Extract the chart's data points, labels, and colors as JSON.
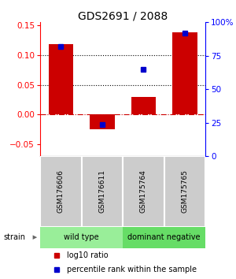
{
  "title": "GDS2691 / 2088",
  "samples": [
    "GSM176606",
    "GSM176611",
    "GSM175764",
    "GSM175765"
  ],
  "log10_ratio": [
    0.118,
    -0.025,
    0.03,
    0.138
  ],
  "percentile_rank_pct": [
    82,
    24,
    65,
    92
  ],
  "ylim_left": [
    -0.07,
    0.155
  ],
  "ylim_right": [
    0,
    100
  ],
  "yticks_left": [
    -0.05,
    0,
    0.05,
    0.1,
    0.15
  ],
  "yticks_right": [
    0,
    25,
    50,
    75,
    100
  ],
  "ytick_labels_right": [
    "0",
    "25",
    "50",
    "75",
    "100%"
  ],
  "hlines": [
    0.1,
    0.05
  ],
  "bar_color": "#cc0000",
  "dot_color": "#0000cc",
  "zero_line_color": "#cc0000",
  "group_labels": [
    "wild type",
    "dominant negative"
  ],
  "group_colors": [
    "#99ee99",
    "#66dd66"
  ],
  "strain_label": "strain",
  "legend_bar_label": "log10 ratio",
  "legend_dot_label": "percentile rank within the sample",
  "title_fontsize": 10,
  "tick_fontsize": 7.5,
  "sample_fontsize": 6.5,
  "group_fontsize": 7,
  "legend_fontsize": 7
}
